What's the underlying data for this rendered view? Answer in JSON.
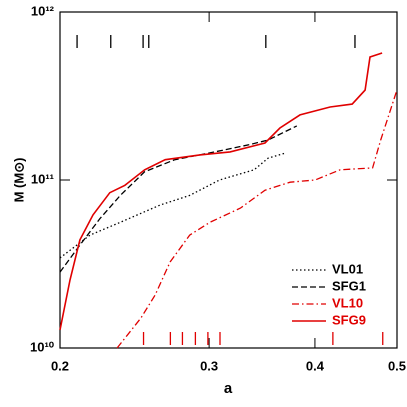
{
  "chart_data": {
    "type": "line",
    "xlabel": "a",
    "ylabel": "M (M⊙)",
    "xscale": "log",
    "yscale": "log",
    "xlim": [
      0.2,
      0.5
    ],
    "ylim": [
      10000000000.0,
      1000000000000.0
    ],
    "xticks": [
      0.2,
      0.3,
      0.4,
      0.5
    ],
    "yticks": [
      {
        "value": 10000000000.0,
        "label": "10¹⁰"
      },
      {
        "value": 100000000000.0,
        "label": "10¹¹"
      },
      {
        "value": 1000000000000.0,
        "label": "10¹²"
      }
    ],
    "legend": "lower right",
    "series": [
      {
        "name": "VL01",
        "color": "#000000",
        "linestyle": "dotted",
        "x": [
          0.2,
          0.217,
          0.2356,
          0.2626,
          0.2846,
          0.3086,
          0.339,
          0.3523,
          0.3698
        ],
        "values": [
          34400000000.0,
          47000000000.0,
          56000000000.0,
          71000000000.0,
          81000000000.0,
          100000000000.0,
          115000000000.0,
          135000000000.0,
          145000000000.0
        ]
      },
      {
        "name": "SFG1",
        "color": "#000000",
        "linestyle": "dashed",
        "x": [
          0.2,
          0.2111,
          0.223,
          0.2356,
          0.2518,
          0.2733,
          0.3006,
          0.3342,
          0.3523,
          0.3808
        ],
        "values": [
          28300000000.0,
          41000000000.0,
          59000000000.0,
          81000000000.0,
          112000000000.0,
          132000000000.0,
          145000000000.0,
          162000000000.0,
          173000000000.0,
          210000000000.0
        ]
      },
      {
        "name": "VL10",
        "color": "#e00000",
        "linestyle": "dashdot",
        "x": [
          0.2336,
          0.2493,
          0.2591,
          0.2698,
          0.2846,
          0.3006,
          0.3266,
          0.3492,
          0.3739,
          0.4002,
          0.4284,
          0.4679,
          0.4783,
          0.5
        ],
        "values": [
          10000000000.0,
          15100000000.0,
          20700000000.0,
          32500000000.0,
          47000000000.0,
          56000000000.0,
          68000000000.0,
          87000000000.0,
          97000000000.0,
          100000000000.0,
          115000000000.0,
          118000000000.0,
          173000000000.0,
          344000000000.0
        ]
      },
      {
        "name": "SFG9",
        "color": "#e00000",
        "linestyle": "solid",
        "x": [
          0.2,
          0.2055,
          0.2111,
          0.2188,
          0.229,
          0.2386,
          0.2518,
          0.2662,
          0.2926,
          0.3176,
          0.3492,
          0.3637,
          0.3841,
          0.4168,
          0.4426,
          0.4584,
          0.4646,
          0.4801
        ],
        "values": [
          12800000000.0,
          25400000000.0,
          44000000000.0,
          62000000000.0,
          84000000000.0,
          93000000000.0,
          115000000000.0,
          132000000000.0,
          141000000000.0,
          147000000000.0,
          166000000000.0,
          204000000000.0,
          244000000000.0,
          272000000000.0,
          283000000000.0,
          343000000000.0,
          540000000000.0,
          570000000000.0
        ]
      }
    ],
    "markers": [
      {
        "color": "#000000",
        "position": "top",
        "x": [
          0.2095,
          0.2296,
          0.2507,
          0.2546,
          0.35,
          0.446
        ]
      },
      {
        "color": "#e00000",
        "position": "bottom",
        "x": [
          0.251,
          0.27,
          0.279,
          0.289,
          0.299,
          0.309,
          0.42,
          0.481
        ]
      }
    ]
  }
}
